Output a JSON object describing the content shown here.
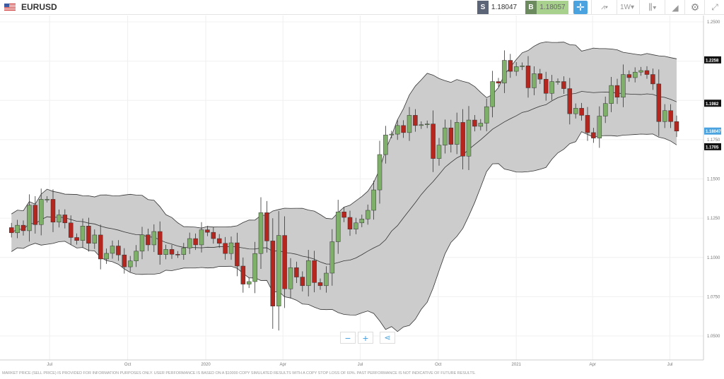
{
  "header": {
    "symbol": "EURUSD",
    "flag": "us-eu-flag-icon",
    "sell_label": "S",
    "sell_price": "1.18047",
    "buy_label": "B",
    "buy_price": "1.18057",
    "timeframe": "1W"
  },
  "toolbar_icons": [
    "crosshair-icon",
    "chart-type-icon",
    "timeframe-dropdown",
    "candles-icon",
    "draw-icon",
    "gear-icon",
    "fullscreen-icon"
  ],
  "colors": {
    "up": "#7fb069",
    "down": "#b5261e",
    "band": "#cccccc",
    "accent": "#4aa3df"
  },
  "disclaimer": "MARKET PRICE (SELL PRICE) IS PROVIDED FOR INFORMATION PURPOSES ONLY. USER PERFORMANCE IS BASED ON A $10000 COPY SIMULATED RESULTS WITH A COPY STOP LOSS OF 60%. PAST PERFORMANCE IS NOT INDICATIVE OF FUTURE RESULTS.",
  "zoom": {
    "minus": "−",
    "plus": "+"
  },
  "chart_data": {
    "type": "candlestick",
    "interval": "1W",
    "start_week": "2019-05-17",
    "first_open": 1.119,
    "closes": [
      1.1157,
      1.1205,
      1.117,
      1.1333,
      1.1209,
      1.137,
      1.137,
      1.1225,
      1.1271,
      1.122,
      1.1127,
      1.1108,
      1.12,
      1.109,
      1.1143,
      1.099,
      1.1026,
      1.1073,
      1.1016,
      1.094,
      1.0978,
      1.104,
      1.1144,
      1.108,
      1.1165,
      1.1018,
      1.1051,
      1.102,
      1.1018,
      1.106,
      1.112,
      1.108,
      1.1176,
      1.116,
      1.112,
      1.109,
      1.1025,
      1.1093,
      1.0945,
      1.083,
      1.0846,
      1.1025,
      1.1285,
      1.1105,
      1.069,
      1.114,
      1.08,
      1.0935,
      1.0875,
      1.082,
      1.098,
      1.084,
      1.082,
      1.09,
      1.11,
      1.129,
      1.1255,
      1.118,
      1.122,
      1.1245,
      1.13,
      1.143,
      1.1655,
      1.178,
      1.1785,
      1.184,
      1.1795,
      1.1905,
      1.184,
      1.1845,
      1.185,
      1.163,
      1.1715,
      1.1825,
      1.172,
      1.186,
      1.1645,
      1.1875,
      1.1835,
      1.1855,
      1.196,
      1.212,
      1.211,
      1.2255,
      1.2185,
      1.2215,
      1.222,
      1.208,
      1.217,
      1.2135,
      1.2045,
      1.212,
      1.212,
      1.2075,
      1.1915,
      1.195,
      1.1905,
      1.1795,
      1.176,
      1.19,
      1.198,
      1.2095,
      1.202,
      1.2165,
      1.2145,
      1.218,
      1.219,
      1.2165,
      1.2105,
      1.1865,
      1.1935,
      1.1865,
      1.18047
    ],
    "indicator": "Bollinger Bands",
    "ylim": [
      1.04,
      1.255
    ],
    "y_ticks": [
      "1.2500",
      "1.1750",
      "1.1500",
      "1.1250",
      "1.1000",
      "1.0750",
      "1.0500"
    ],
    "x_ticks": [
      {
        "label": "Jul",
        "date": "2019-07-01"
      },
      {
        "label": "Oct",
        "date": "2019-10-01"
      },
      {
        "label": "2020",
        "date": "2020-01-01"
      },
      {
        "label": "Apr",
        "date": "2020-04-01"
      },
      {
        "label": "Jul",
        "date": "2020-07-01"
      },
      {
        "label": "Oct",
        "date": "2020-10-01"
      },
      {
        "label": "2021",
        "date": "2021-01-01"
      },
      {
        "label": "Apr",
        "date": "2021-04-01"
      },
      {
        "label": "Jul",
        "date": "2021-07-01"
      }
    ],
    "price_labels": [
      {
        "text": "1.2258",
        "value": 1.2258,
        "color": "#111111"
      },
      {
        "text": "1.1982",
        "value": 1.1982,
        "color": "#111111"
      },
      {
        "text": "1.18047",
        "value": 1.18047,
        "color": "#4aa3df"
      },
      {
        "text": "1.1705",
        "value": 1.1705,
        "color": "#111111"
      }
    ]
  }
}
